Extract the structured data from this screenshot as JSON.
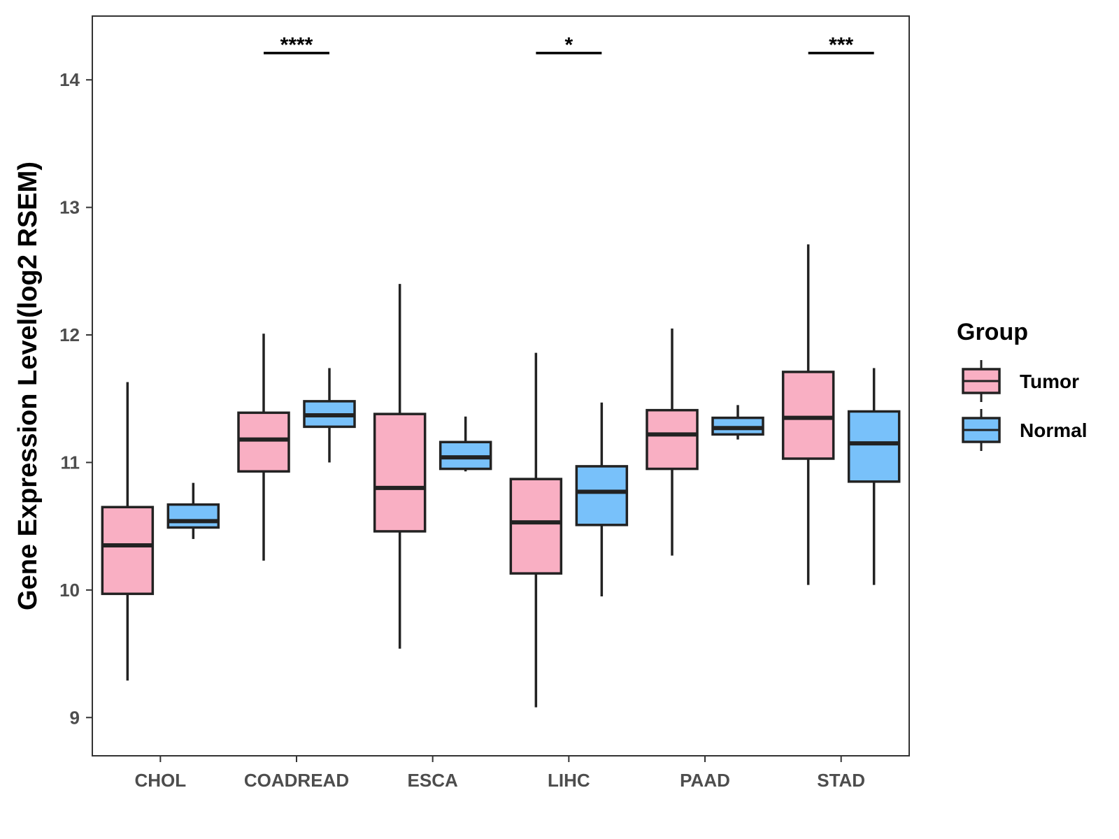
{
  "chart_data": {
    "type": "boxplot",
    "title": "",
    "xlabel": "",
    "ylabel": "Gene Expression Level(log2 RSEM)",
    "ylim": [
      8.7,
      14.5
    ],
    "yticks": [
      9,
      10,
      11,
      12,
      13,
      14
    ],
    "grid": false,
    "categories": [
      "CHOL",
      "COADREAD",
      "ESCA",
      "LIHC",
      "PAAD",
      "STAD"
    ],
    "legend": {
      "title": "Group",
      "position": "right"
    },
    "series": [
      {
        "name": "Tumor",
        "color": "#F9AFC3",
        "boxes": [
          {
            "whisker_low": 9.29,
            "q1": 9.97,
            "median": 10.35,
            "q3": 10.65,
            "whisker_high": 11.63
          },
          {
            "whisker_low": 10.23,
            "q1": 10.93,
            "median": 11.18,
            "q3": 11.39,
            "whisker_high": 12.01
          },
          {
            "whisker_low": 9.54,
            "q1": 10.46,
            "median": 10.8,
            "q3": 11.38,
            "whisker_high": 12.4
          },
          {
            "whisker_low": 9.08,
            "q1": 10.13,
            "median": 10.53,
            "q3": 10.87,
            "whisker_high": 11.86
          },
          {
            "whisker_low": 10.27,
            "q1": 10.95,
            "median": 11.22,
            "q3": 11.41,
            "whisker_high": 12.05
          },
          {
            "whisker_low": 10.04,
            "q1": 11.03,
            "median": 11.35,
            "q3": 11.71,
            "whisker_high": 12.71
          }
        ]
      },
      {
        "name": "Normal",
        "color": "#78C1FA",
        "boxes": [
          {
            "whisker_low": 10.4,
            "q1": 10.49,
            "median": 10.54,
            "q3": 10.67,
            "whisker_high": 10.84
          },
          {
            "whisker_low": 11.0,
            "q1": 11.28,
            "median": 11.37,
            "q3": 11.48,
            "whisker_high": 11.74
          },
          {
            "whisker_low": 10.93,
            "q1": 10.95,
            "median": 11.04,
            "q3": 11.16,
            "whisker_high": 11.36
          },
          {
            "whisker_low": 9.95,
            "q1": 10.51,
            "median": 10.77,
            "q3": 10.97,
            "whisker_high": 11.47
          },
          {
            "whisker_low": 11.18,
            "q1": 11.22,
            "median": 11.27,
            "q3": 11.35,
            "whisker_high": 11.45
          },
          {
            "whisker_low": 10.04,
            "q1": 10.85,
            "median": 11.15,
            "q3": 11.4,
            "whisker_high": 11.74
          }
        ]
      }
    ],
    "significance": [
      {
        "category": "COADREAD",
        "label": "****",
        "y": 14.21
      },
      {
        "category": "LIHC",
        "label": "*",
        "y": 14.21
      },
      {
        "category": "STAD",
        "label": "***",
        "y": 14.21
      }
    ]
  }
}
